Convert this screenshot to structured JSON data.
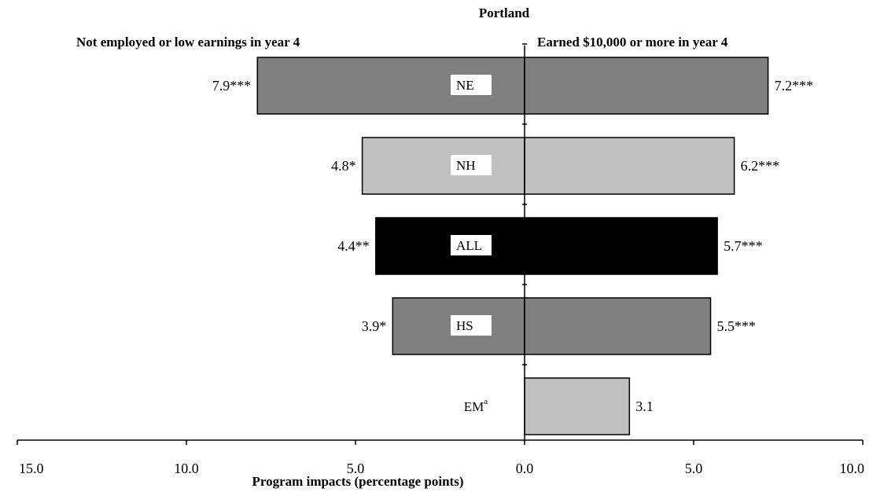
{
  "chart_data": {
    "type": "bar",
    "orientation": "horizontal",
    "title": "Portland",
    "left_heading": "Not employed or low earnings in year 4",
    "right_heading": "Earned $10,000 or more in year 4",
    "xlabel": "Program impacts (percentage points)",
    "xlim": [
      -15,
      10
    ],
    "x_tick_labels": [
      "15.0",
      "10.0",
      "5.0",
      "0.0",
      "5.0",
      "10.0"
    ],
    "x_tick_values": [
      -15,
      -10,
      -5,
      0,
      5,
      10
    ],
    "categories": [
      {
        "label": "NE",
        "superscript": "",
        "left": 7.9,
        "left_label": "7.9***",
        "right": 7.2,
        "right_label": "7.2***",
        "color": "#808080"
      },
      {
        "label": "NH",
        "superscript": "",
        "left": 4.8,
        "left_label": "4.8*",
        "right": 6.2,
        "right_label": "6.2***",
        "color": "#c0c0c0"
      },
      {
        "label": "ALL",
        "superscript": "",
        "left": 4.4,
        "left_label": "4.4**",
        "right": 5.7,
        "right_label": "5.7***",
        "color": "#000000"
      },
      {
        "label": "HS",
        "superscript": "",
        "left": 3.9,
        "left_label": "3.9*",
        "right": 5.5,
        "right_label": "5.5***",
        "color": "#808080"
      },
      {
        "label": "EM",
        "superscript": "a",
        "left": null,
        "left_label": "",
        "right": 3.1,
        "right_label": "3.1",
        "color": "#c0c0c0"
      }
    ],
    "grid": false
  }
}
